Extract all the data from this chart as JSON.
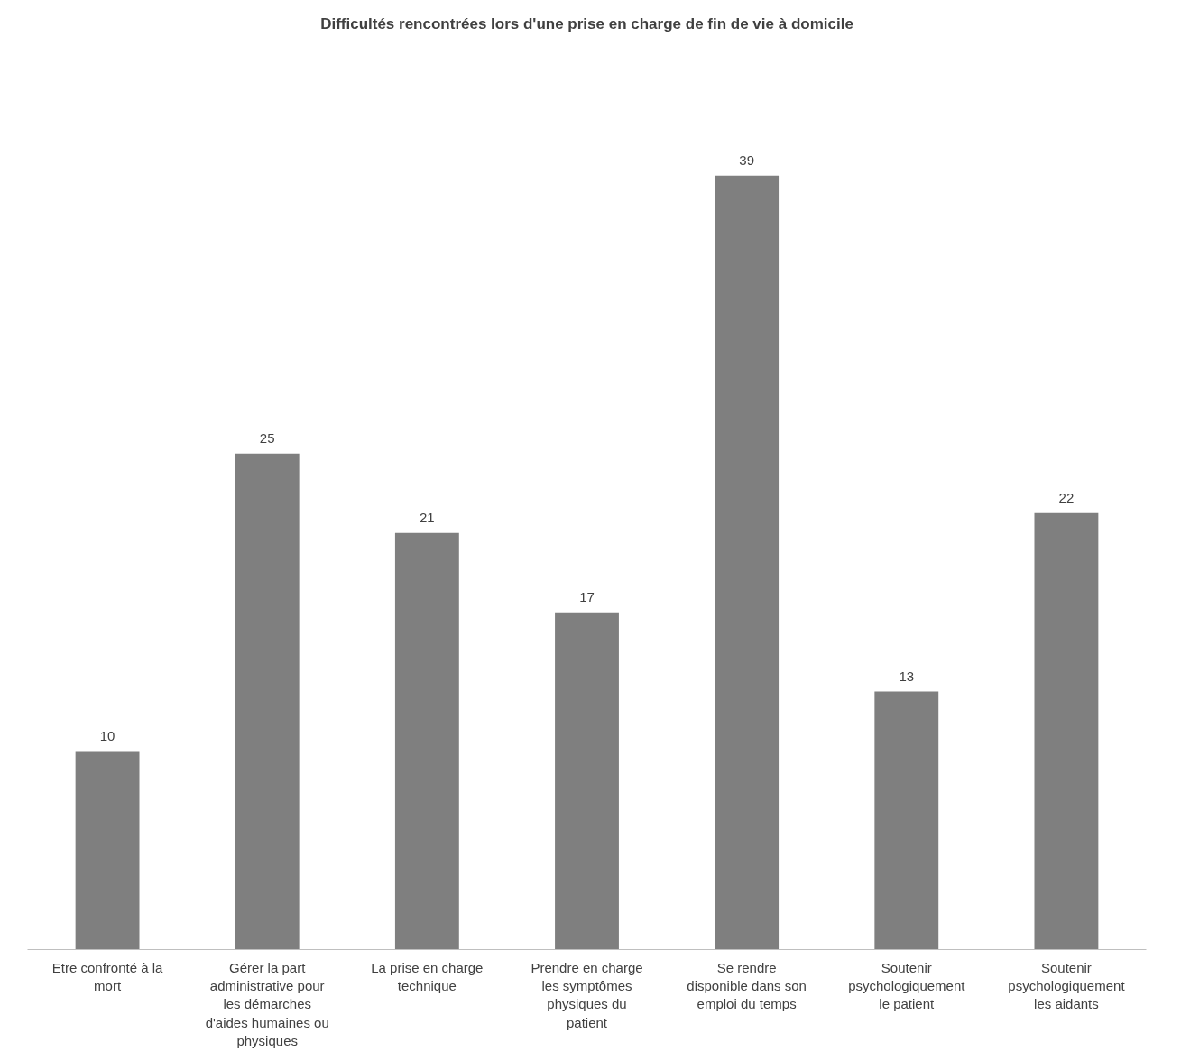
{
  "chart_data": {
    "type": "bar",
    "title": "Difficultés rencontrées lors d'une prise en charge de fin de vie à domicile",
    "categories": [
      "Etre confronté à la mort",
      "Gérer la part administrative pour les démarches d'aides humaines ou physiques",
      "La prise en charge technique",
      "Prendre en charge les symptômes physiques du patient",
      "Se rendre disponible dans son emploi du temps",
      "Soutenir psychologiquement le patient",
      "Soutenir psychologiquement les aidants"
    ],
    "values": [
      10,
      25,
      21,
      17,
      39,
      13,
      22
    ],
    "color": "#7f7f7f",
    "data_labels": true,
    "tick_labels": "x"
  }
}
